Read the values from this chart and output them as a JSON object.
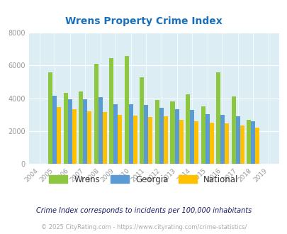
{
  "title": "Wrens Property Crime Index",
  "title_color": "#1a6fbb",
  "years": [
    "2004",
    "2005",
    "2006",
    "2007",
    "2008",
    "2009",
    "2010",
    "2011",
    "2012",
    "2013",
    "2014",
    "2015",
    "2016",
    "2017",
    "2018",
    "2019"
  ],
  "wrens": [
    0,
    5600,
    4350,
    4400,
    6100,
    6450,
    6600,
    5300,
    3900,
    3800,
    4250,
    3500,
    5600,
    4100,
    2700,
    0
  ],
  "georgia": [
    0,
    4150,
    3950,
    3950,
    4050,
    3650,
    3650,
    3600,
    3400,
    3350,
    3300,
    3050,
    3000,
    2900,
    2600,
    0
  ],
  "national": [
    0,
    3450,
    3350,
    3200,
    3150,
    3000,
    2950,
    2850,
    2900,
    2700,
    2600,
    2500,
    2450,
    2350,
    2200,
    0
  ],
  "wrens_color": "#8dc63f",
  "georgia_color": "#5b9bd5",
  "national_color": "#ffc000",
  "bg_color": "#dceef4",
  "ylim": [
    0,
    8000
  ],
  "yticks": [
    0,
    2000,
    4000,
    6000,
    8000
  ],
  "footnote1": "Crime Index corresponds to incidents per 100,000 inhabitants",
  "footnote2": "© 2025 CityRating.com - https://www.cityrating.com/crime-statistics/",
  "footnote1_color": "#1a1a66",
  "footnote2_color": "#aaaaaa",
  "legend_labels": [
    "Wrens",
    "Georgia",
    "National"
  ]
}
